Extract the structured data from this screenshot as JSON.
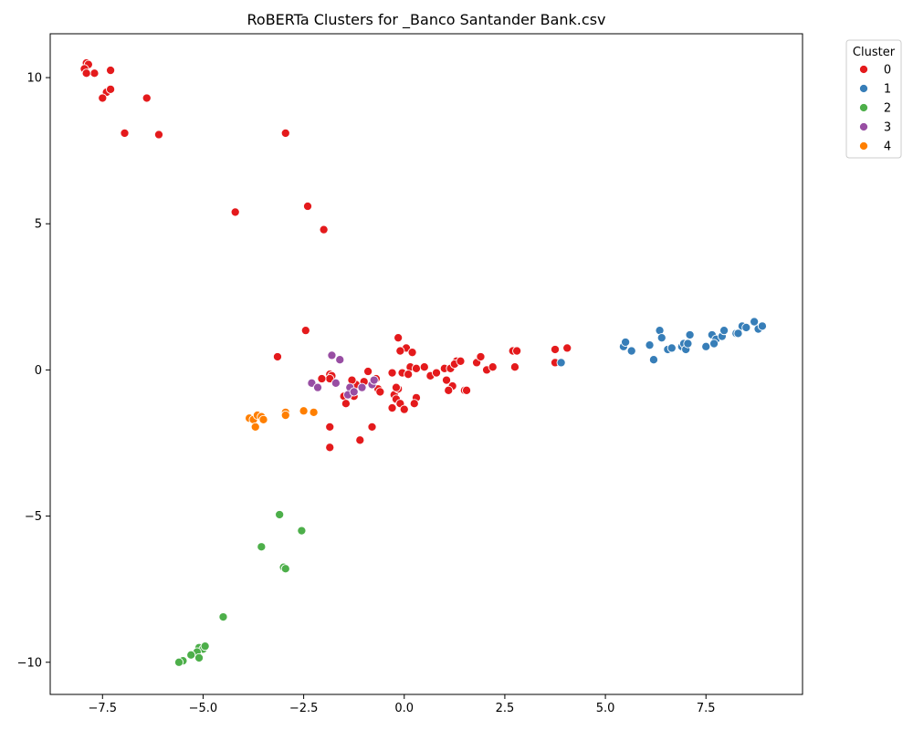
{
  "chart_data": {
    "type": "scatter",
    "title": "RoBERTa Clusters for _Banco Santander Bank.csv",
    "xlabel": "",
    "ylabel": "",
    "xlim": [
      -8.8,
      9.9
    ],
    "ylim": [
      -11.1,
      11.5
    ],
    "x_ticks": [
      -7.5,
      -5.0,
      -2.5,
      0.0,
      2.5,
      5.0,
      7.5
    ],
    "x_tick_labels": [
      "−7.5",
      "−5.0",
      "−2.5",
      "0.0",
      "2.5",
      "5.0",
      "7.5"
    ],
    "y_ticks": [
      -10,
      -5,
      0,
      5,
      10
    ],
    "y_tick_labels": [
      "−10",
      "−5",
      "0",
      "5",
      "10"
    ],
    "grid": false,
    "legend": {
      "title": "Cluster",
      "placement": "outside-top-right"
    },
    "series": [
      {
        "name": "0",
        "color": "#e41a1c",
        "points": [
          [
            -7.9,
            10.5
          ],
          [
            -7.85,
            10.45
          ],
          [
            -7.95,
            10.3
          ],
          [
            -7.7,
            10.15
          ],
          [
            -7.9,
            10.15
          ],
          [
            -7.3,
            10.25
          ],
          [
            -7.4,
            9.5
          ],
          [
            -7.3,
            9.6
          ],
          [
            -7.5,
            9.3
          ],
          [
            -6.4,
            9.3
          ],
          [
            -6.95,
            8.1
          ],
          [
            -6.1,
            8.05
          ],
          [
            -2.95,
            8.1
          ],
          [
            -4.2,
            5.4
          ],
          [
            -2.4,
            5.6
          ],
          [
            -2.0,
            4.8
          ],
          [
            -2.45,
            1.35
          ],
          [
            -3.15,
            0.45
          ],
          [
            -0.15,
            1.1
          ],
          [
            0.05,
            0.75
          ],
          [
            -0.1,
            0.65
          ],
          [
            0.2,
            0.6
          ],
          [
            0.15,
            0.1
          ],
          [
            0.3,
            0.05
          ],
          [
            0.5,
            0.1
          ],
          [
            0.65,
            -0.2
          ],
          [
            0.8,
            -0.1
          ],
          [
            1.0,
            0.05
          ],
          [
            1.15,
            0.05
          ],
          [
            1.3,
            0.3
          ],
          [
            1.25,
            0.2
          ],
          [
            1.4,
            0.3
          ],
          [
            1.05,
            -0.35
          ],
          [
            1.2,
            -0.55
          ],
          [
            1.1,
            -0.7
          ],
          [
            1.5,
            -0.7
          ],
          [
            1.55,
            -0.7
          ],
          [
            1.8,
            0.25
          ],
          [
            1.9,
            0.45
          ],
          [
            2.05,
            0.0
          ],
          [
            2.2,
            0.1
          ],
          [
            2.7,
            0.65
          ],
          [
            2.8,
            0.65
          ],
          [
            2.75,
            0.1
          ],
          [
            3.75,
            0.7
          ],
          [
            4.05,
            0.75
          ],
          [
            3.75,
            0.25
          ],
          [
            -0.05,
            -0.1
          ],
          [
            0.1,
            -0.15
          ],
          [
            -0.3,
            -0.1
          ],
          [
            -0.25,
            -0.85
          ],
          [
            -0.15,
            -0.65
          ],
          [
            -0.2,
            -1.0
          ],
          [
            -0.1,
            -1.15
          ],
          [
            0.0,
            -1.35
          ],
          [
            -0.3,
            -1.3
          ],
          [
            0.3,
            -0.95
          ],
          [
            0.25,
            -1.15
          ],
          [
            -0.2,
            -0.6
          ],
          [
            -0.65,
            -0.65
          ],
          [
            -0.7,
            -0.3
          ],
          [
            -0.9,
            -0.05
          ],
          [
            -1.0,
            -0.4
          ],
          [
            -1.2,
            -0.5
          ],
          [
            -1.3,
            -0.35
          ],
          [
            -1.25,
            -0.9
          ],
          [
            -1.5,
            -0.9
          ],
          [
            -1.45,
            -1.15
          ],
          [
            -1.85,
            -0.15
          ],
          [
            -1.8,
            -0.2
          ],
          [
            -1.85,
            -0.3
          ],
          [
            -2.05,
            -0.3
          ],
          [
            -1.1,
            -2.4
          ],
          [
            -1.85,
            -1.95
          ],
          [
            -1.85,
            -2.65
          ],
          [
            -0.8,
            -1.95
          ],
          [
            -0.6,
            -0.75
          ]
        ]
      },
      {
        "name": "1",
        "color": "#377eb8",
        "points": [
          [
            5.45,
            0.8
          ],
          [
            5.5,
            0.95
          ],
          [
            5.65,
            0.65
          ],
          [
            3.9,
            0.25
          ],
          [
            6.1,
            0.85
          ],
          [
            6.35,
            1.35
          ],
          [
            6.4,
            1.1
          ],
          [
            6.2,
            0.35
          ],
          [
            6.55,
            0.7
          ],
          [
            6.65,
            0.75
          ],
          [
            6.9,
            0.8
          ],
          [
            6.95,
            0.9
          ],
          [
            7.0,
            0.7
          ],
          [
            7.05,
            0.9
          ],
          [
            7.1,
            1.2
          ],
          [
            7.5,
            0.8
          ],
          [
            7.65,
            1.2
          ],
          [
            7.75,
            1.05
          ],
          [
            7.7,
            0.9
          ],
          [
            7.9,
            1.15
          ],
          [
            7.95,
            1.35
          ],
          [
            8.25,
            1.25
          ],
          [
            8.3,
            1.25
          ],
          [
            8.4,
            1.5
          ],
          [
            8.5,
            1.45
          ],
          [
            8.7,
            1.65
          ],
          [
            8.8,
            1.4
          ],
          [
            8.9,
            1.5
          ]
        ]
      },
      {
        "name": "2",
        "color": "#4daf4a",
        "points": [
          [
            -3.1,
            -4.95
          ],
          [
            -2.55,
            -5.5
          ],
          [
            -3.55,
            -6.05
          ],
          [
            -3.0,
            -6.75
          ],
          [
            -2.95,
            -6.8
          ],
          [
            -4.5,
            -8.45
          ],
          [
            -5.1,
            -9.5
          ],
          [
            -5.0,
            -9.55
          ],
          [
            -4.95,
            -9.45
          ],
          [
            -5.15,
            -9.65
          ],
          [
            -5.3,
            -9.75
          ],
          [
            -5.1,
            -9.85
          ],
          [
            -5.5,
            -9.95
          ],
          [
            -5.6,
            -10.0
          ]
        ]
      },
      {
        "name": "3",
        "color": "#984ea3",
        "points": [
          [
            -1.8,
            0.5
          ],
          [
            -1.6,
            0.35
          ],
          [
            -2.3,
            -0.45
          ],
          [
            -2.15,
            -0.6
          ],
          [
            -1.7,
            -0.45
          ],
          [
            -1.35,
            -0.6
          ],
          [
            -1.4,
            -0.85
          ],
          [
            -1.25,
            -0.75
          ],
          [
            -1.05,
            -0.6
          ],
          [
            -0.8,
            -0.5
          ],
          [
            -0.75,
            -0.35
          ]
        ]
      },
      {
        "name": "4",
        "color": "#ff7f00",
        "points": [
          [
            -3.85,
            -1.65
          ],
          [
            -3.75,
            -1.7
          ],
          [
            -3.65,
            -1.55
          ],
          [
            -3.55,
            -1.6
          ],
          [
            -3.5,
            -1.7
          ],
          [
            -3.7,
            -1.95
          ],
          [
            -2.95,
            -1.45
          ],
          [
            -2.95,
            -1.55
          ],
          [
            -2.5,
            -1.4
          ],
          [
            -2.25,
            -1.45
          ]
        ]
      }
    ]
  }
}
